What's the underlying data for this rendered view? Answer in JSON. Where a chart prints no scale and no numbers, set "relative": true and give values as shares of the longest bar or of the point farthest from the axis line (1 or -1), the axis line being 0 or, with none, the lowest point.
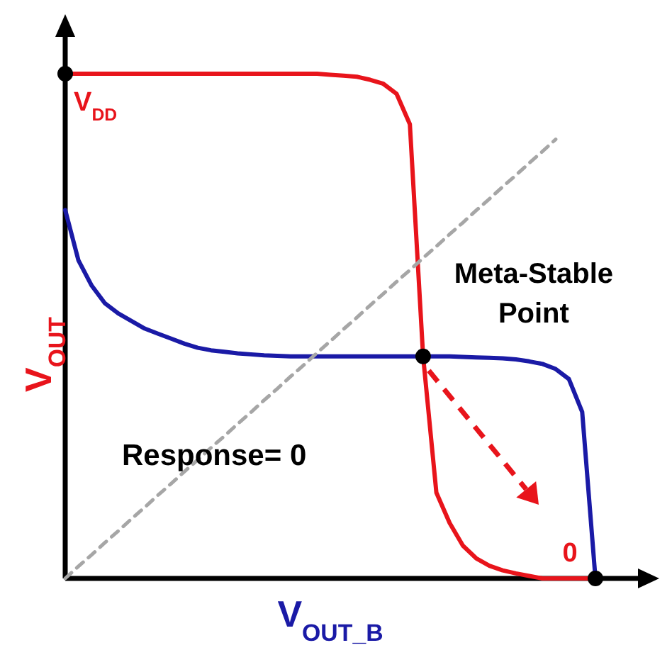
{
  "chart_data": {
    "type": "line",
    "relative": true,
    "xlabel": "V$_{OUT_B}$",
    "ylabel": "V$_{OUT}$",
    "categories": [
      null,
      null,
      null,
      null,
      null,
      null,
      null,
      null,
      null,
      null,
      null,
      null,
      null,
      null,
      null,
      null,
      null,
      null,
      null,
      null,
      null,
      null,
      null,
      null,
      null,
      null,
      null,
      null,
      null,
      null,
      null,
      null,
      null,
      null,
      null,
      null,
      null,
      null,
      null,
      null,
      null
    ],
    "series": [
      {
        "color": "#e8141b",
        "values": [
          1,
          1,
          1,
          1,
          1,
          1,
          1,
          1,
          1,
          1,
          1,
          1,
          1,
          1,
          1,
          1,
          1,
          1,
          1,
          1,
          0.998,
          0.996,
          0.994,
          0.988,
          0.98,
          0.96,
          0.9,
          0.44,
          0.17,
          0.11,
          0.065,
          0.04,
          0.025,
          0.016,
          0.01,
          0.005,
          0,
          0,
          0,
          0,
          0
        ]
      },
      {
        "color": "#1a1aa6",
        "values": [
          0.73,
          0.63,
          0.58,
          0.545,
          0.525,
          0.51,
          0.495,
          0.485,
          0.475,
          0.465,
          0.457,
          0.452,
          0.449,
          0.446,
          0.444,
          0.442,
          0.441,
          0.44,
          0.44,
          0.44,
          0.44,
          0.44,
          0.44,
          0.44,
          0.44,
          0.44,
          0.44,
          0.44,
          0.44,
          0.44,
          0.439,
          0.438,
          0.437,
          0.436,
          0.434,
          0.43,
          0.425,
          0.415,
          0.395,
          0.33,
          0
        ]
      },
      {
        "color": "#a6a6a6",
        "line_style": "dashed",
        "values": [
          0,
          0.024,
          0.047,
          0.071,
          0.094,
          0.118,
          0.141,
          0.165,
          0.188,
          0.212,
          0.235,
          0.259,
          0.282,
          0.306,
          0.329,
          0.353,
          0.376,
          0.4,
          0.423,
          0.447,
          0.47,
          0.494,
          0.517,
          0.541,
          0.564,
          0.588,
          0.611,
          0.635,
          0.658,
          0.682,
          0.705,
          0.729,
          0.752,
          0.776,
          0.799,
          0.823,
          0.846,
          0.87,
          null,
          null,
          null
        ]
      }
    ],
    "annotations": [
      "V$_{DD}$",
      "Meta-Stable Point",
      "0",
      "Response= 0"
    ]
  }
}
